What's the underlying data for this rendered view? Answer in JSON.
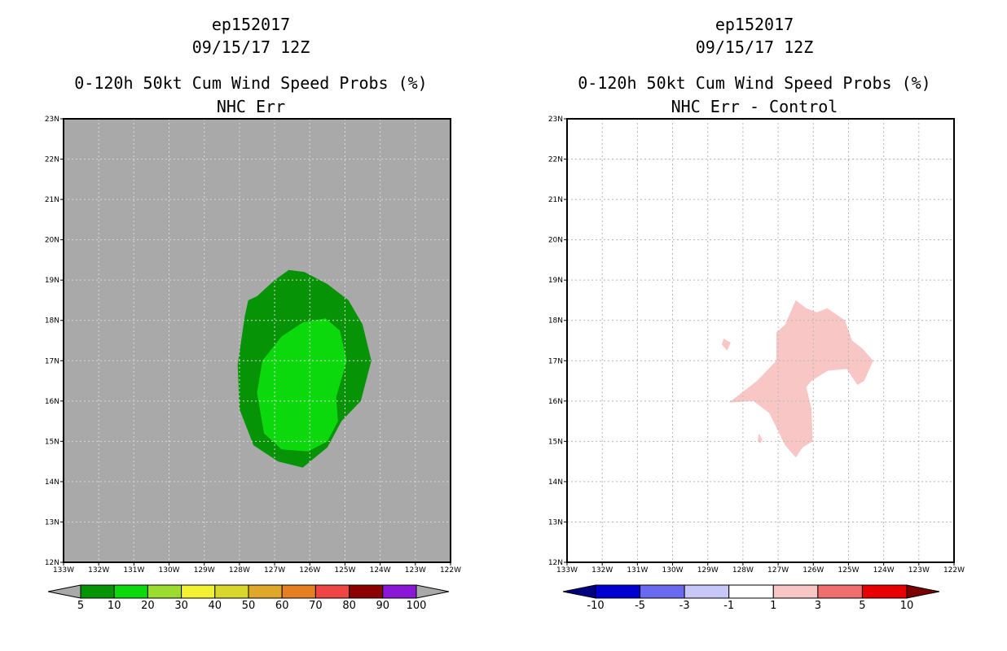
{
  "left": {
    "storm_id": "ep152017",
    "datetime": "09/15/17 12Z",
    "title": "0-120h 50kt Cum Wind Speed Probs (%)",
    "subtitle": "NHC Err",
    "lat_labels": [
      "23N",
      "22N",
      "21N",
      "20N",
      "19N",
      "18N",
      "17N",
      "16N",
      "15N",
      "14N",
      "13N",
      "12N"
    ],
    "lon_labels": [
      "133W",
      "132W",
      "131W",
      "130W",
      "129W",
      "128W",
      "127W",
      "126W",
      "125W",
      "124W",
      "123W",
      "122W"
    ],
    "field_colors": {
      "background": "#a9a9a9",
      "outer": "#069406",
      "inner": "#0cd90c"
    },
    "contours": {
      "outer_level": "5-10",
      "inner_level": "10-20",
      "outer_ring": [
        [
          -127.75,
          18.5
        ],
        [
          -127.5,
          18.6
        ],
        [
          -127,
          19
        ],
        [
          -126.6,
          19.25
        ],
        [
          -126.15,
          19.2
        ],
        [
          -125.5,
          18.9
        ],
        [
          -124.9,
          18.5
        ],
        [
          -124.5,
          17.9
        ],
        [
          -124.25,
          17
        ],
        [
          -124.55,
          16
        ],
        [
          -125.1,
          15.5
        ],
        [
          -125.5,
          14.85
        ],
        [
          -126.2,
          14.35
        ],
        [
          -126.9,
          14.5
        ],
        [
          -127.6,
          14.9
        ],
        [
          -128,
          15.8
        ],
        [
          -128.05,
          16.9
        ],
        [
          -127.85,
          18.1
        ]
      ],
      "inner_ring": [
        [
          -126.8,
          17.6
        ],
        [
          -126.2,
          17.95
        ],
        [
          -125.55,
          18.05
        ],
        [
          -125.15,
          17.75
        ],
        [
          -124.95,
          17
        ],
        [
          -125.25,
          16.1
        ],
        [
          -125.2,
          15.5
        ],
        [
          -125.5,
          15
        ],
        [
          -126.05,
          14.75
        ],
        [
          -126.8,
          14.8
        ],
        [
          -127.3,
          15.2
        ],
        [
          -127.5,
          16.2
        ],
        [
          -127.35,
          17
        ]
      ]
    },
    "colorbar": {
      "labels": [
        "5",
        "10",
        "20",
        "30",
        "40",
        "50",
        "60",
        "70",
        "80",
        "90",
        "100"
      ],
      "colors": [
        "#069406",
        "#0cd90c",
        "#9bdc2e",
        "#f2f230",
        "#d8d82c",
        "#e0a82a",
        "#e57f22",
        "#f04545",
        "#8c0000",
        "#8a17d8"
      ],
      "extend_color": "#a9a9a9"
    }
  },
  "right": {
    "storm_id": "ep152017",
    "datetime": "09/15/17 12Z",
    "title": "0-120h 50kt Cum Wind Speed Probs (%)",
    "subtitle": "NHC Err - Control",
    "lat_labels": [
      "23N",
      "22N",
      "21N",
      "20N",
      "19N",
      "18N",
      "17N",
      "16N",
      "15N",
      "14N",
      "13N",
      "12N"
    ],
    "lon_labels": [
      "133W",
      "132W",
      "131W",
      "130W",
      "129W",
      "128W",
      "127W",
      "126W",
      "125W",
      "124W",
      "123W",
      "122W"
    ],
    "field_colors": {
      "background": "#ffffff",
      "positive": "#f9c6c6"
    },
    "contours": {
      "main_level": "1-3",
      "main": [
        [
          -127.05,
          17.7
        ],
        [
          -126.8,
          17.9
        ],
        [
          -126.5,
          18.5
        ],
        [
          -126.2,
          18.3
        ],
        [
          -125.9,
          18.2
        ],
        [
          -125.6,
          18.3
        ],
        [
          -125.1,
          18
        ],
        [
          -124.9,
          17.5
        ],
        [
          -124.6,
          17.3
        ],
        [
          -124.3,
          17
        ],
        [
          -124.55,
          16.5
        ],
        [
          -124.75,
          16.4
        ],
        [
          -125.05,
          16.8
        ],
        [
          -125.6,
          16.75
        ],
        [
          -126.05,
          16.5
        ],
        [
          -126.2,
          16.35
        ],
        [
          -126.05,
          15.8
        ],
        [
          -126.02,
          15
        ],
        [
          -126.3,
          14.85
        ],
        [
          -126.5,
          14.6
        ],
        [
          -126.8,
          14.9
        ],
        [
          -127.25,
          15.7
        ],
        [
          -127.7,
          16
        ],
        [
          -128.4,
          15.96
        ],
        [
          -127.6,
          16.5
        ],
        [
          -127.05,
          17
        ]
      ],
      "small_blobs": [
        [
          [
            -128.55,
            17.55
          ],
          [
            -128.35,
            17.45
          ],
          [
            -128.45,
            17.25
          ],
          [
            -128.6,
            17.4
          ]
        ],
        [
          [
            -127.55,
            15.2
          ],
          [
            -127.45,
            15.05
          ],
          [
            -127.5,
            14.95
          ],
          [
            -127.58,
            15
          ]
        ]
      ]
    },
    "colorbar": {
      "labels": [
        "-10",
        "-5",
        "-3",
        "-1",
        "1",
        "3",
        "5",
        "10"
      ],
      "colors": [
        "#0000d0",
        "#6a6af0",
        "#c8c8f8",
        "#ffffff",
        "#f9c6c6",
        "#f06e6e",
        "#e80000"
      ],
      "extend_left_color": "#000080",
      "extend_right_color": "#7a0000"
    }
  }
}
